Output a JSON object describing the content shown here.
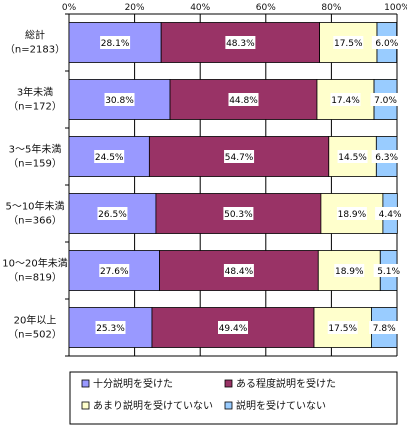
{
  "chart_data": {
    "type": "bar",
    "orientation": "horizontal",
    "stacked": true,
    "normalized_percent": true,
    "x_ticks": [
      "0%",
      "20%",
      "40%",
      "60%",
      "80%",
      "100%"
    ],
    "xlim": [
      0,
      100
    ],
    "grid": true,
    "legend_position": "bottom",
    "categories": [
      {
        "label": "総計",
        "n": "（n=2183）"
      },
      {
        "label": "3年未満",
        "n": "（n=172）"
      },
      {
        "label": "3～5年未満",
        "n": "（n=159）"
      },
      {
        "label": "5～10年未満",
        "n": "（n=366）"
      },
      {
        "label": "10～20年未満",
        "n": "（n=819）"
      },
      {
        "label": "20年以上",
        "n": "（n=502）"
      }
    ],
    "series": [
      {
        "name": "十分説明を受けた",
        "color": "#9999ff",
        "values": [
          28.1,
          30.8,
          24.5,
          26.5,
          27.6,
          25.3
        ],
        "labels": [
          "28.1%",
          "30.8%",
          "24.5%",
          "26.5%",
          "27.6%",
          "25.3%"
        ]
      },
      {
        "name": "ある程度説明を受けた",
        "color": "#993366",
        "values": [
          48.3,
          44.8,
          54.7,
          50.3,
          48.4,
          49.4
        ],
        "labels": [
          "48.3%",
          "44.8%",
          "54.7%",
          "50.3%",
          "48.4%",
          "49.4%"
        ]
      },
      {
        "name": "あまり説明を受けていない",
        "color": "#ffffcc",
        "values": [
          17.5,
          17.4,
          14.5,
          18.9,
          18.9,
          17.5
        ],
        "labels": [
          "17.5%",
          "17.4%",
          "14.5%",
          "18.9%",
          "18.9%",
          "17.5%"
        ]
      },
      {
        "name": "説明を受けていない",
        "color": "#99ccff",
        "values": [
          6.0,
          7.0,
          6.3,
          4.4,
          5.1,
          7.8
        ],
        "labels": [
          "6.0%",
          "7.0%",
          "6.3%",
          "4.4%",
          "5.1%",
          "7.8%"
        ]
      }
    ]
  }
}
